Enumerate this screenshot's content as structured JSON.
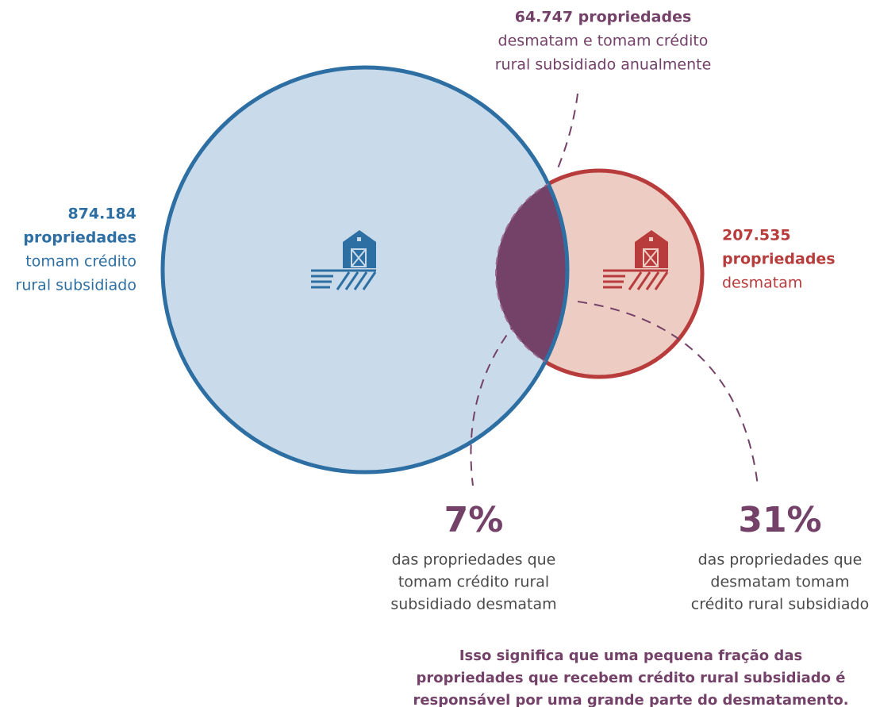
{
  "overlap": {
    "value": "64.747 propriedades",
    "lines": [
      "desmatam e tomam crédito",
      "rural subsidiado anualmente"
    ]
  },
  "credit": {
    "value": "874.184",
    "unit": "propriedades",
    "lines": [
      "tomam crédito",
      "rural subsidiado"
    ]
  },
  "deforest": {
    "value": "207.535",
    "unit": "propriedades",
    "lines": [
      "desmatam"
    ]
  },
  "stats": [
    {
      "value": "7%",
      "lines": [
        "das propriedades que",
        "tomam crédito rural",
        "subsidiado desmatam"
      ]
    },
    {
      "value": "31%",
      "lines": [
        "das propriedades que",
        "desmatam tomam",
        "crédito rural subsidiado"
      ]
    }
  ],
  "conclusion": [
    "Isso significa que uma pequena fração das",
    "propriedades que recebem crédito rural subsidiado é",
    "responsável por uma grande parte do desmatamento."
  ]
}
